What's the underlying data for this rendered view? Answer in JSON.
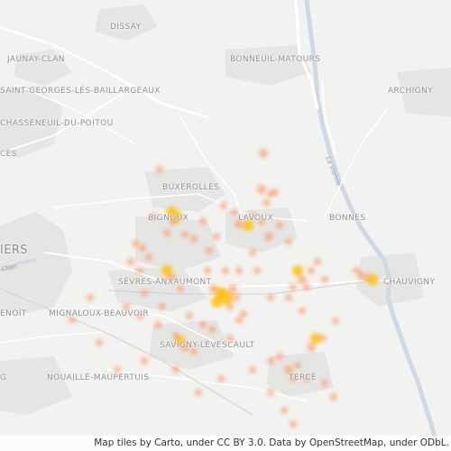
{
  "map": {
    "places": {
      "dissay": "DISSAY",
      "jaunay_clan": "JAUNAY-CLAN",
      "bonneuil_matours": "BONNEUIL-MATOURS",
      "saint_georges": "SAINT-GEORGES-LÈS-BAILLARGEAUX",
      "archigny": "ARCHIGNY",
      "chasseneuil": "CHASSENEUIL-DU-POITOU",
      "ces": "CES",
      "buxerolles": "BUXEROLLES",
      "bignoux": "BIGNOUX",
      "lavoux": "LAVOUX",
      "bonnes": "BONNES",
      "poitiers": "IERS",
      "sevres_anxaumont": "SÈVRES-ANXAUMONT",
      "chauvigny": "CHAUVIGNY",
      "benoit": "ENOÎT",
      "mignaloux": "MIGNALOUX-BEAUVOIR",
      "savigny": "SAVIGNY-LÉVESCAULT",
      "nouaille": "NOUAILLÉ-MAUPERTUIS",
      "tercé": "TERCÉ",
      "g": "G"
    },
    "rivers": {
      "vienne": "La Vienne",
      "clain": "Clain"
    },
    "attribution": "Map tiles by Carto, under CC BY 3.0. Data by OpenStreetMap, under ODbL."
  },
  "colors": {
    "land": "#f2f2f0",
    "urban": "#e5e5e3",
    "road": "#ffffff",
    "water": "#cfd8e3",
    "heat_core": "#ffc21a",
    "heat_edge": "#ff8a50"
  }
}
